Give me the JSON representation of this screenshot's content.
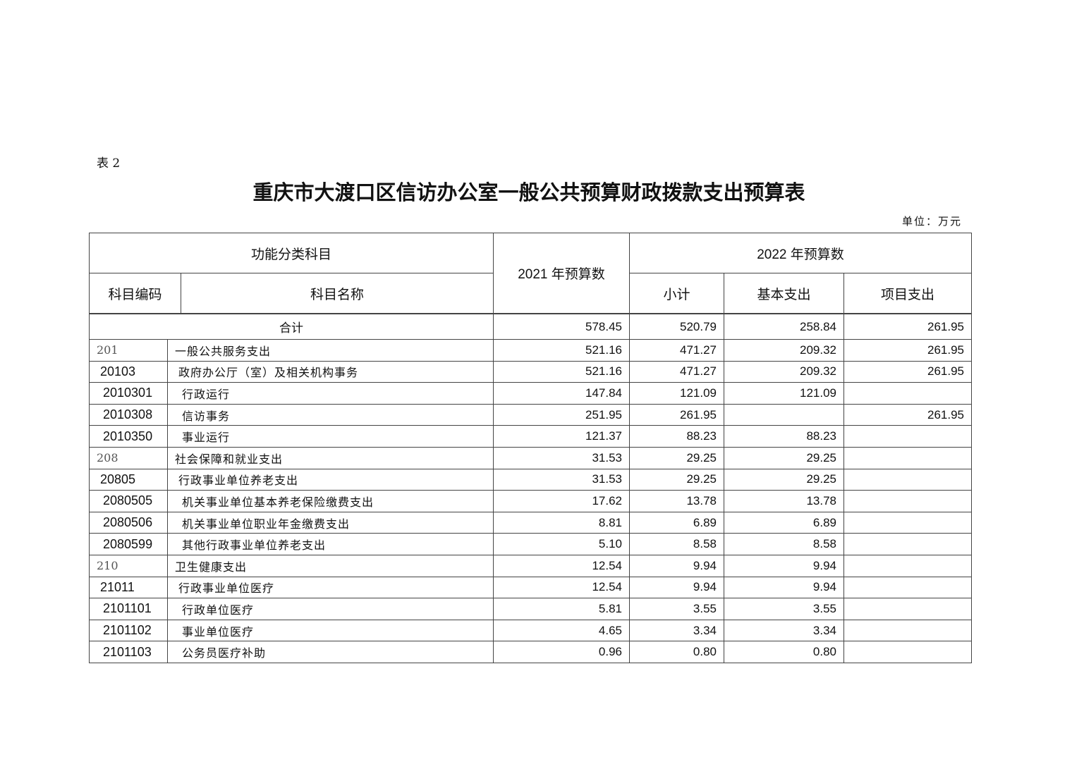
{
  "doc": {
    "label": "表 2",
    "title": "重庆市大渡口区信访办公室一般公共预算财政拨款支出预算表",
    "unit": "单位：万元"
  },
  "header": {
    "functional": "功能分类科目",
    "y2021": "2021 年预算数",
    "y2022": "2022 年预算数",
    "code": "科目编码",
    "name": "科目名称",
    "subtotal": "小计",
    "basic": "基本支出",
    "project": "项目支出"
  },
  "total": {
    "label": "合计",
    "y2021": "578.45",
    "subtotal": "520.79",
    "basic": "258.84",
    "project": "261.95"
  },
  "rows": [
    {
      "level": 1,
      "code": "201",
      "name": "一般公共服务支出",
      "y2021": "521.16",
      "subtotal": "471.27",
      "basic": "209.32",
      "project": "261.95"
    },
    {
      "level": 2,
      "code": "20103",
      "name": "政府办公厅（室）及相关机构事务",
      "y2021": "521.16",
      "subtotal": "471.27",
      "basic": "209.32",
      "project": "261.95"
    },
    {
      "level": 3,
      "code": "2010301",
      "name": "行政运行",
      "y2021": "147.84",
      "subtotal": "121.09",
      "basic": "121.09",
      "project": ""
    },
    {
      "level": 3,
      "code": "2010308",
      "name": "信访事务",
      "y2021": "251.95",
      "subtotal": "261.95",
      "basic": "",
      "project": "261.95"
    },
    {
      "level": 3,
      "code": "2010350",
      "name": "事业运行",
      "y2021": "121.37",
      "subtotal": "88.23",
      "basic": "88.23",
      "project": ""
    },
    {
      "level": 1,
      "code": "208",
      "name": "社会保障和就业支出",
      "y2021": "31.53",
      "subtotal": "29.25",
      "basic": "29.25",
      "project": ""
    },
    {
      "level": 2,
      "code": "20805",
      "name": "行政事业单位养老支出",
      "y2021": "31.53",
      "subtotal": "29.25",
      "basic": "29.25",
      "project": ""
    },
    {
      "level": 3,
      "code": "2080505",
      "name": "机关事业单位基本养老保险缴费支出",
      "y2021": "17.62",
      "subtotal": "13.78",
      "basic": "13.78",
      "project": ""
    },
    {
      "level": 3,
      "code": "2080506",
      "name": "机关事业单位职业年金缴费支出",
      "y2021": "8.81",
      "subtotal": "6.89",
      "basic": "6.89",
      "project": ""
    },
    {
      "level": 3,
      "code": "2080599",
      "name": "其他行政事业单位养老支出",
      "y2021": "5.10",
      "subtotal": "8.58",
      "basic": "8.58",
      "project": ""
    },
    {
      "level": 1,
      "code": "210",
      "name": "卫生健康支出",
      "y2021": "12.54",
      "subtotal": "9.94",
      "basic": "9.94",
      "project": ""
    },
    {
      "level": 2,
      "code": "21011",
      "name": "行政事业单位医疗",
      "y2021": "12.54",
      "subtotal": "9.94",
      "basic": "9.94",
      "project": ""
    },
    {
      "level": 3,
      "code": "2101101",
      "name": "行政单位医疗",
      "y2021": "5.81",
      "subtotal": "3.55",
      "basic": "3.55",
      "project": ""
    },
    {
      "level": 3,
      "code": "2101102",
      "name": "事业单位医疗",
      "y2021": "4.65",
      "subtotal": "3.34",
      "basic": "3.34",
      "project": ""
    },
    {
      "level": 3,
      "code": "2101103",
      "name": "公务员医疗补助",
      "y2021": "0.96",
      "subtotal": "0.80",
      "basic": "0.80",
      "project": ""
    }
  ]
}
